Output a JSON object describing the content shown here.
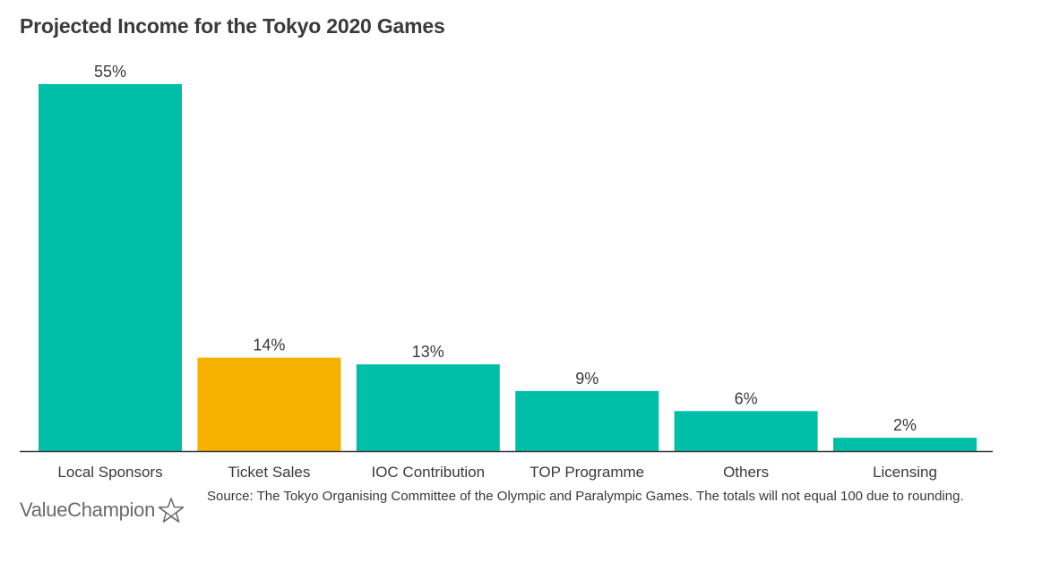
{
  "chart_data": {
    "type": "bar",
    "title": "Projected Income for the Tokyo 2020 Games",
    "xlabel": "",
    "ylabel": "",
    "ylim": [
      0,
      55
    ],
    "grid": false,
    "categories": [
      "Local Sponsors",
      "Ticket Sales",
      "IOC Contribution",
      "TOP Programme",
      "Others",
      "Licensing"
    ],
    "values": [
      55,
      14,
      13,
      9,
      6,
      2
    ],
    "value_labels": [
      "55%",
      "14%",
      "13%",
      "9%",
      "6%",
      "2%"
    ],
    "colors": [
      "#00bfa9",
      "#f7b200",
      "#00bfa9",
      "#00bfa9",
      "#00bfa9",
      "#00bfa9"
    ],
    "highlight_category": "Ticket Sales"
  },
  "footer": {
    "brand": "ValueChampion",
    "brand_icon": "star-outline-icon",
    "source": "Source: The Tokyo Organising Committee of the Olympic and Paralympic Games. The totals will not equal 100 due to rounding."
  },
  "colors": {
    "primary": "#00bfa9",
    "highlight": "#f7b200",
    "axis": "#3a3a3a",
    "text": "#3a3a3a"
  }
}
